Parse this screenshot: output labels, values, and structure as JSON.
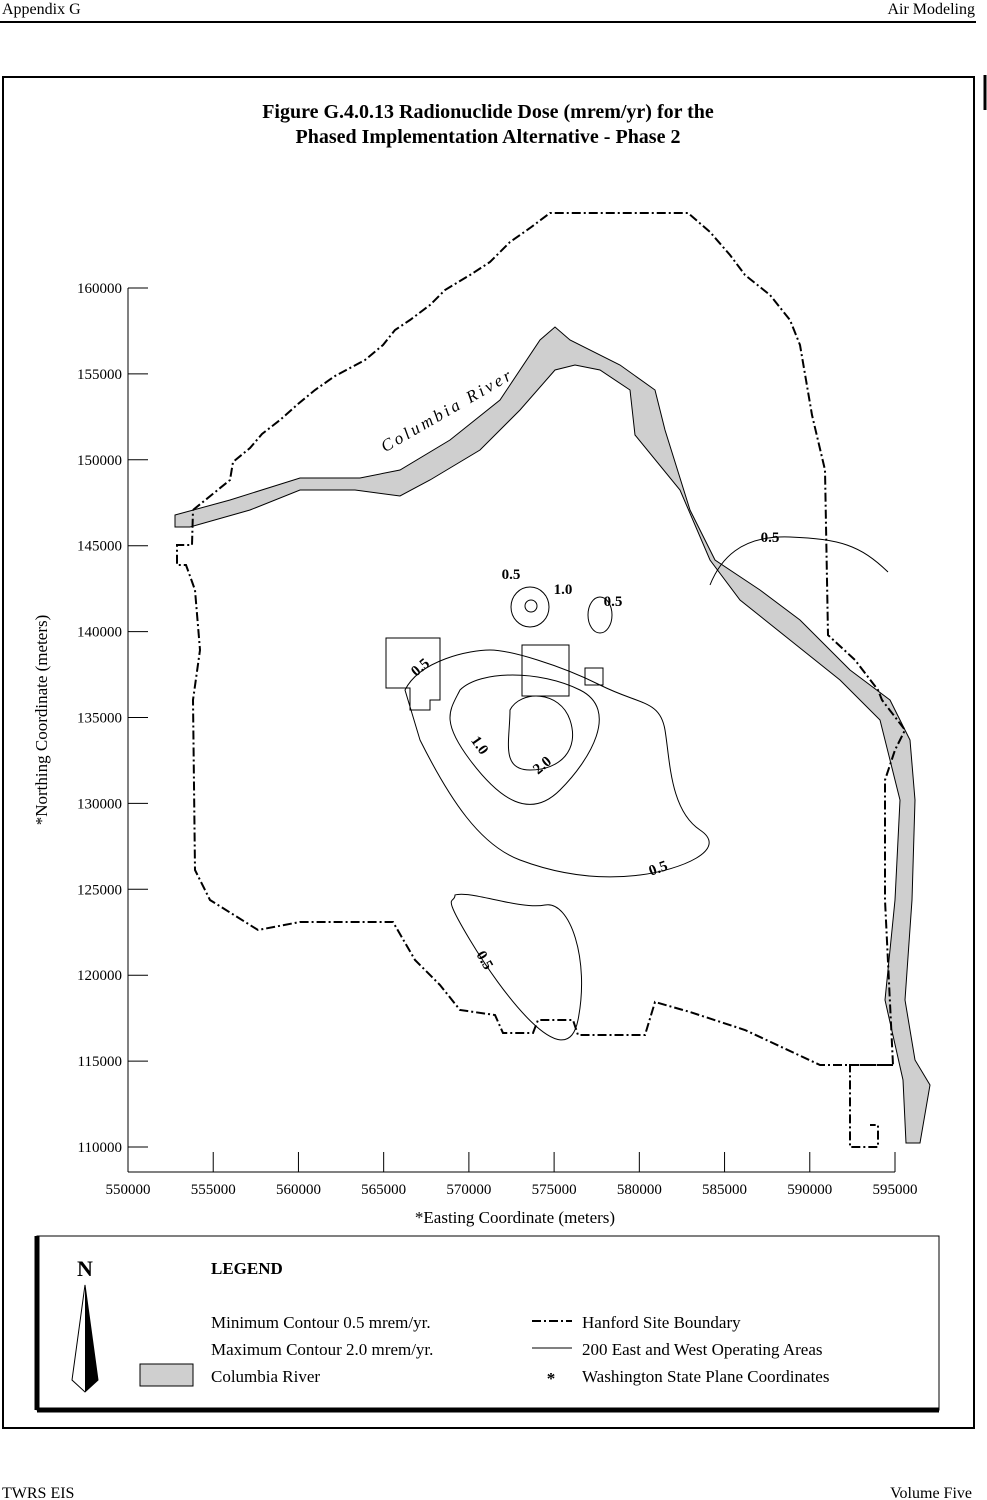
{
  "header": {
    "left": "Appendix G",
    "right": "Air Modeling"
  },
  "figure": {
    "title_lines": [
      "Figure G.4.0.13  Radionuclide Dose (mrem/yr) for the",
      "Phased Implementation Alternative - Phase 2"
    ],
    "xlabel": "*Easting Coordinate (meters)",
    "ylabel": "*Northing Coordinate (meters)",
    "xlim": [
      550000,
      595000
    ],
    "ylim": [
      110000,
      160000
    ],
    "xticks": [
      550000,
      555000,
      560000,
      565000,
      570000,
      575000,
      580000,
      585000,
      590000,
      595000
    ],
    "yticks": [
      110000,
      115000,
      120000,
      125000,
      130000,
      135000,
      140000,
      145000,
      150000,
      155000,
      160000
    ],
    "river_label": "Columbia River",
    "contour_labels": [
      "0.5",
      "0.5",
      "1.0",
      "0.5",
      "0.5",
      "1.0",
      "2.0",
      "0.5",
      "0.5"
    ]
  },
  "legend": {
    "north": "N",
    "title": "LEGEND",
    "items": [
      "Minimum Contour 0.5 mrem/yr.",
      "Maximum Contour 2.0 mrem/yr.",
      "Columbia River",
      "Hanford Site Boundary",
      "200 East and West Operating Areas",
      "Washington State Plane Coordinates"
    ],
    "symbol": "*"
  },
  "footer": {
    "left": "TWRS EIS",
    "right": "Volume Five"
  }
}
